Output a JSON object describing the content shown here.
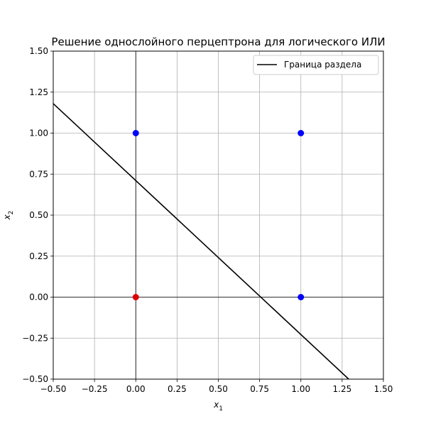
{
  "chart_data": {
    "type": "scatter",
    "title": "Решение однослойного перцептрона для логического ИЛИ",
    "xlabel": "x",
    "xlabel_sub": "1",
    "ylabel": "x",
    "ylabel_sub": "2",
    "xlim": [
      -0.5,
      1.5
    ],
    "ylim": [
      -0.5,
      1.5
    ],
    "xticks": [
      -0.5,
      -0.25,
      0.0,
      0.25,
      0.5,
      0.75,
      1.0,
      1.25,
      1.5
    ],
    "yticks": [
      -0.5,
      -0.25,
      0.0,
      0.25,
      0.5,
      0.75,
      1.0,
      1.25,
      1.5
    ],
    "xtick_labels": [
      "−0.50",
      "−0.25",
      "0.00",
      "0.25",
      "0.50",
      "0.75",
      "1.00",
      "1.25",
      "1.50"
    ],
    "ytick_labels": [
      "−0.50",
      "−0.25",
      "0.00",
      "0.25",
      "0.50",
      "0.75",
      "1.00",
      "1.25",
      "1.50"
    ],
    "grid": true,
    "zero_lines": true,
    "points": [
      {
        "x": 0,
        "y": 0,
        "color": "#dd0000"
      },
      {
        "x": 0,
        "y": 1,
        "color": "#0000ff"
      },
      {
        "x": 1,
        "y": 0,
        "color": "#0000ff"
      },
      {
        "x": 1,
        "y": 1,
        "color": "#0000ff"
      }
    ],
    "boundary": {
      "name": "Граница раздела",
      "color": "#000000",
      "x": [
        -0.5,
        1.29
      ],
      "y": [
        1.18,
        -0.5
      ]
    },
    "legend_position": "top-right"
  }
}
